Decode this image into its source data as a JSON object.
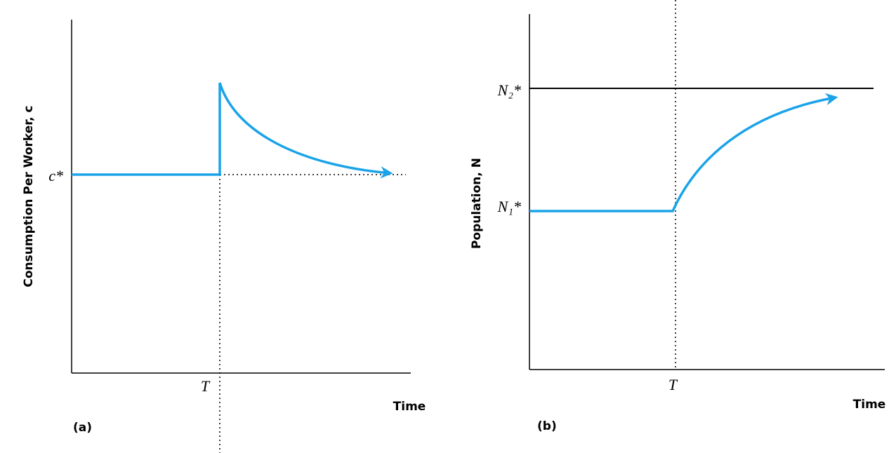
{
  "panel_a": {
    "y_axis_label": "Consumption Per Worker, c",
    "level_label": "c*",
    "time_mark": "T",
    "x_axis_label": "Time",
    "panel_label": "(a)"
  },
  "panel_b": {
    "y_axis_label": "Population, N",
    "upper_level_label": "N₂*",
    "lower_level_label": "N₁*",
    "time_mark": "T",
    "x_axis_label": "Time",
    "panel_label": "(b)"
  }
}
